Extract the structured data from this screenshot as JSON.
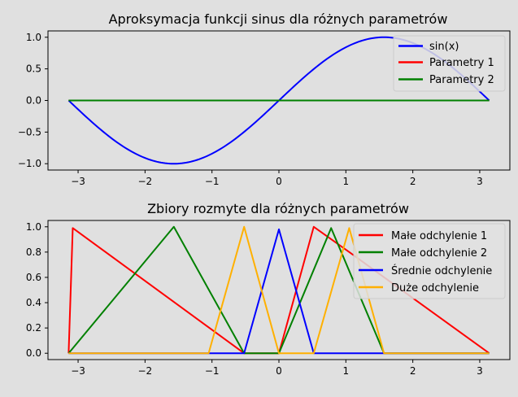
{
  "chart_data": [
    {
      "type": "line",
      "title": "Aproksymacja funkcji sinus dla różnych parametrów",
      "xlabel": "",
      "ylabel": "",
      "xlim": [
        -3.45,
        3.45
      ],
      "ylim": [
        -1.1,
        1.1
      ],
      "xticks": [
        -3,
        -2,
        -1,
        0,
        1,
        2,
        3
      ],
      "xtick_labels": [
        "−3",
        "−2",
        "−1",
        "0",
        "1",
        "2",
        "3"
      ],
      "yticks": [
        -1.0,
        -0.5,
        0.0,
        0.5,
        1.0
      ],
      "ytick_labels": [
        "−1.0",
        "−0.5",
        "0.0",
        "0.5",
        "1.0"
      ],
      "legend_position": "upper right",
      "series": [
        {
          "name": "sin(x)",
          "color": "#0000ff",
          "function": "sin",
          "x_range": [
            -3.14159,
            3.14159
          ]
        },
        {
          "name": "Parametry 1",
          "color": "#ff0000",
          "x": [
            -3.14159,
            3.14159
          ],
          "y": [
            0,
            0
          ]
        },
        {
          "name": "Parametry 2",
          "color": "#008000",
          "x": [
            -3.14159,
            3.14159
          ],
          "y": [
            0,
            0
          ]
        }
      ]
    },
    {
      "type": "line",
      "title": "Zbiory rozmyte dla różnych parametrów",
      "xlabel": "",
      "ylabel": "",
      "xlim": [
        -3.45,
        3.45
      ],
      "ylim": [
        -0.05,
        1.05
      ],
      "xticks": [
        -3,
        -2,
        -1,
        0,
        1,
        2,
        3
      ],
      "xtick_labels": [
        "−3",
        "−2",
        "−1",
        "0",
        "1",
        "2",
        "3"
      ],
      "yticks": [
        0.0,
        0.2,
        0.4,
        0.6,
        0.8,
        1.0
      ],
      "ytick_labels": [
        "0.0",
        "0.2",
        "0.4",
        "0.6",
        "0.8",
        "1.0"
      ],
      "legend_position": "upper right",
      "series": [
        {
          "name": "Małe odchylenie 1",
          "color": "#ff0000",
          "x": [
            -3.14159,
            -3.08,
            -0.52,
            0.0,
            0.52,
            1.05,
            3.14159
          ],
          "y": [
            0,
            0.99,
            0,
            0,
            1.0,
            0.8,
            0
          ]
        },
        {
          "name": "Małe odchylenie 2",
          "color": "#008000",
          "x": [
            -3.14159,
            -1.57,
            -0.52,
            0.0,
            0.78,
            1.57,
            3.14159
          ],
          "y": [
            0,
            1.0,
            0,
            0,
            0.99,
            0,
            0
          ]
        },
        {
          "name": "Średnie odchylenie",
          "color": "#0000ff",
          "x": [
            -3.14159,
            -1.05,
            -0.52,
            0.0,
            0.52,
            1.57,
            3.14159
          ],
          "y": [
            0,
            0,
            0,
            0.98,
            0,
            0,
            0
          ]
        },
        {
          "name": "Duże odchylenie",
          "color": "#ffb000",
          "x": [
            -3.14159,
            -1.05,
            -0.52,
            0.0,
            0.52,
            1.05,
            1.57,
            3.14159
          ],
          "y": [
            0,
            0,
            1.0,
            0,
            0,
            0.99,
            0,
            0
          ]
        }
      ]
    }
  ]
}
